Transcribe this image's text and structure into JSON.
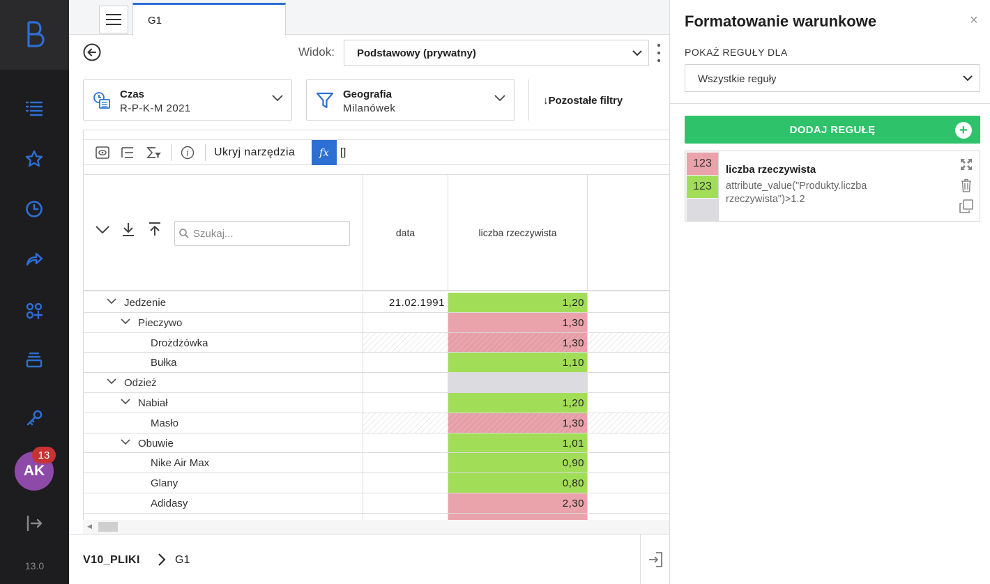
{
  "app": {
    "logo_letter": "B",
    "version": "13.0"
  },
  "sidebar": {
    "items": [
      {
        "icon": "list-icon"
      },
      {
        "icon": "star-icon"
      },
      {
        "icon": "clock-icon"
      },
      {
        "icon": "share-icon"
      },
      {
        "icon": "apps-plus-icon"
      },
      {
        "icon": "inbox-icon"
      },
      {
        "icon": "key-icon"
      }
    ],
    "user_initials": "AK",
    "notification_count": "13"
  },
  "tabbar": {
    "active_tab": "G1"
  },
  "viewbar": {
    "label": "Widok:",
    "selected": "Podstawowy (prywatny)"
  },
  "filters": [
    {
      "title": "Czas",
      "value": "R-P-K-M 2021",
      "icon": "calendar-clock-icon"
    },
    {
      "title": "Geografia",
      "value": "Milanówek",
      "icon": "funnel-icon"
    }
  ],
  "other_filters": "Pozostałe filtry",
  "toolbar": {
    "hide_tools": "Ukryj narzędzia",
    "fx": "fx",
    "formula": "[]"
  },
  "grid": {
    "search_placeholder": "Szukaj...",
    "columns": [
      "data",
      "liczba rzeczywista"
    ],
    "rows": [
      {
        "name": "Jedzenie",
        "level": 0,
        "expandable": true,
        "date": "21.02.1991",
        "value": "1,20",
        "status": "green"
      },
      {
        "name": "Pieczywo",
        "level": 1,
        "expandable": true,
        "date": "",
        "value": "1,30",
        "status": "red"
      },
      {
        "name": "Drożdżówka",
        "level": 2,
        "expandable": false,
        "date": "",
        "value": "1,30",
        "status": "red",
        "hatched": true
      },
      {
        "name": "Bułka",
        "level": 2,
        "expandable": false,
        "date": "",
        "value": "1,10",
        "status": "green"
      },
      {
        "name": "Odzież",
        "level": 0,
        "expandable": true,
        "date": "",
        "value": "",
        "status": "grey"
      },
      {
        "name": "Nabiał",
        "level": 1,
        "expandable": true,
        "date": "",
        "value": "1,20",
        "status": "green"
      },
      {
        "name": "Masło",
        "level": 2,
        "expandable": false,
        "date": "",
        "value": "1,30",
        "status": "red",
        "hatched": true
      },
      {
        "name": "Obuwie",
        "level": 1,
        "expandable": true,
        "date": "",
        "value": "1,01",
        "status": "green"
      },
      {
        "name": "Nike Air Max",
        "level": 2,
        "expandable": false,
        "date": "",
        "value": "0,90",
        "status": "green"
      },
      {
        "name": "Glany",
        "level": 2,
        "expandable": false,
        "date": "",
        "value": "0,80",
        "status": "green"
      },
      {
        "name": "Adidasy",
        "level": 2,
        "expandable": false,
        "date": "",
        "value": "2,30",
        "status": "red"
      },
      {
        "name": "",
        "level": 2,
        "expandable": false,
        "date": "",
        "value": "",
        "status": "red"
      }
    ]
  },
  "footer": {
    "breadcrumb_root": "V10_PLIKI",
    "breadcrumb_current": "G1"
  },
  "panel": {
    "title": "Formatowanie warunkowe",
    "close": "×",
    "show_rules_label": "POKAŻ REGUŁY DLA",
    "rules_select": "Wszystkie reguły",
    "add_rule": "DODAJ REGUŁĘ",
    "rule": {
      "swatch_red": "123",
      "swatch_green": "123",
      "name": "liczba rzeczywista",
      "expression": "attribute_value(\"Produkty.liczba rzeczywista\")>1.2"
    }
  },
  "colors": {
    "accent": "#2d6fd3",
    "green_cell": "#a2dd58",
    "red_cell": "#eaa3ab",
    "grey_cell": "#dcdbe0",
    "add_button": "#2ec26a",
    "sidebar_bg": "#1d1d1f"
  }
}
